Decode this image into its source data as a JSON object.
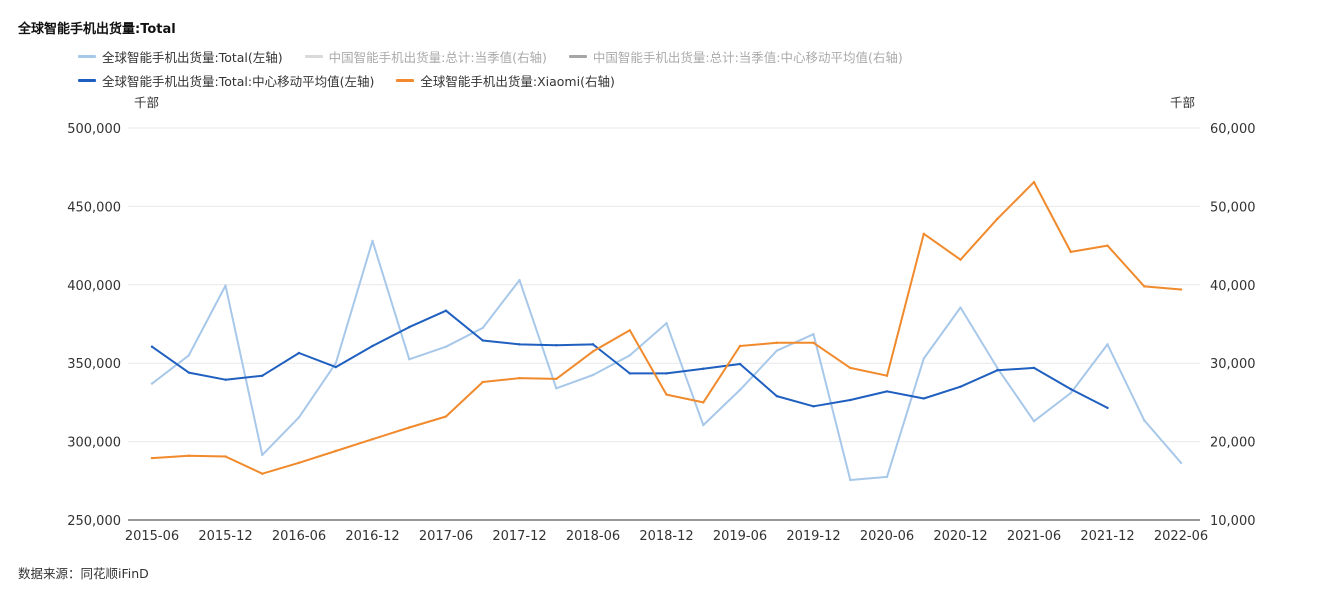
{
  "title": "全球智能手机出货量:Total",
  "source": "数据来源：同花顺iFinD",
  "left_unit": "千部",
  "right_unit": "千部",
  "legend": [
    {
      "label": "全球智能手机出货量:Total(左轴)",
      "color": "#a8c8ea",
      "muted": false
    },
    {
      "label": "中国智能手机出货量:总计:当季值(右轴)",
      "color": "#d9d9d9",
      "muted": true
    },
    {
      "label": "中国智能手机出货量:总计:当季值:中心移动平均值(右轴)",
      "color": "#a6a6a6",
      "muted": true
    },
    {
      "label": "全球智能手机出货量:Total:中心移动平均值(左轴)",
      "color": "#1f5fbf",
      "muted": false
    },
    {
      "label": "全球智能手机出货量:Xiaomi(右轴)",
      "color": "#f08a2c",
      "muted": false
    }
  ],
  "chart_data": {
    "type": "line",
    "x": [
      "2015-06",
      "2015-09",
      "2015-12",
      "2016-03",
      "2016-06",
      "2016-09",
      "2016-12",
      "2017-03",
      "2017-06",
      "2017-09",
      "2017-12",
      "2018-03",
      "2018-06",
      "2018-09",
      "2018-12",
      "2019-03",
      "2019-06",
      "2019-09",
      "2019-12",
      "2020-03",
      "2020-06",
      "2020-09",
      "2020-12",
      "2021-03",
      "2021-06",
      "2021-09",
      "2021-12",
      "2022-03",
      "2022-06"
    ],
    "x_tick_labels": [
      "2015-06",
      "2015-12",
      "2016-06",
      "2016-12",
      "2017-06",
      "2017-12",
      "2018-06",
      "2018-12",
      "2019-06",
      "2019-12",
      "2020-06",
      "2020-12",
      "2021-06",
      "2021-12",
      "2022-06"
    ],
    "y_left": {
      "min": 250000,
      "max": 500000,
      "ticks": [
        "250,000",
        "300,000",
        "350,000",
        "400,000",
        "450,000",
        "500,000"
      ]
    },
    "y_right": {
      "min": 10000,
      "max": 60000,
      "ticks": [
        "10,000",
        "20,000",
        "30,000",
        "40,000",
        "50,000",
        "60,000"
      ]
    },
    "grid": "horizontal",
    "legend_position": "top-left",
    "series": [
      {
        "name": "全球智能手机出货量:Total(左轴)",
        "axis": "left",
        "color": "#a8c8ea",
        "values": [
          337000,
          355000,
          399500,
          291500,
          315500,
          350000,
          428000,
          352500,
          360500,
          372500,
          403000,
          334000,
          342500,
          355000,
          375500,
          310500,
          333000,
          358000,
          368500,
          275500,
          277500,
          353000,
          385500,
          347000,
          313000,
          331000,
          362000,
          313500,
          286500
        ]
      },
      {
        "name": "全球智能手机出货量:Total:中心移动平均值(左轴)",
        "axis": "left",
        "color": "#1f5fbf",
        "values": [
          360500,
          344000,
          339500,
          342000,
          356500,
          347500,
          361000,
          373000,
          383500,
          364500,
          362000,
          361500,
          362000,
          343500,
          343500,
          346500,
          349500,
          329000,
          322500,
          326500,
          332000,
          327500,
          335000,
          345500,
          347000,
          333500,
          321500,
          null,
          null
        ]
      },
      {
        "name": "全球智能手机出货量:Xiaomi(右轴)",
        "axis": "right",
        "color": "#f08a2c",
        "values": [
          17900,
          18200,
          18100,
          15900,
          17300,
          18800,
          20300,
          21800,
          23200,
          27600,
          28100,
          28000,
          31500,
          34200,
          26000,
          25000,
          32200,
          32600,
          32600,
          29400,
          28400,
          46500,
          43200,
          48400,
          53100,
          44200,
          45000,
          39800,
          39400
        ]
      }
    ]
  }
}
